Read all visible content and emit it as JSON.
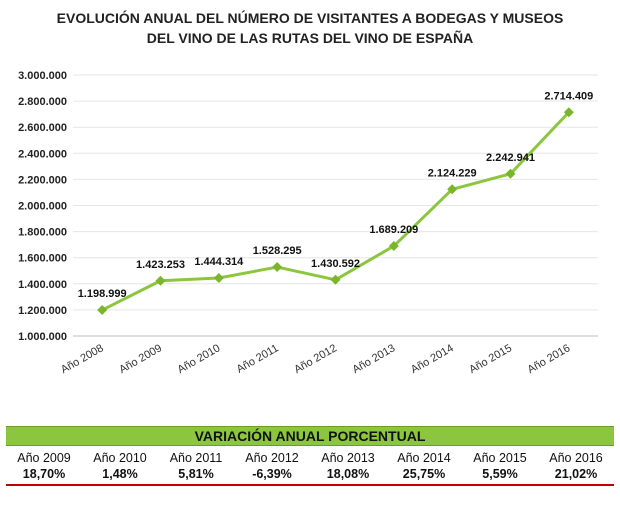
{
  "title_lines": [
    "EVOLUCIÓN ANUAL DEL NÚMERO DE VISITANTES A BODEGAS Y MUSEOS",
    "DEL VINO DE LAS RUTAS DEL VINO DE ESPAÑA"
  ],
  "colors": {
    "line": "#8cc63f",
    "marker": "#7ab62c",
    "grid": "#e6e6e6",
    "table_header": "#8cc63f",
    "table_rule": "#c00000"
  },
  "chart_data": {
    "type": "line",
    "title": "EVOLUCIÓN ANUAL DEL NÚMERO DE VISITANTES A BODEGAS Y MUSEOS DEL VINO DE LAS RUTAS DEL VINO DE ESPAÑA",
    "categories": [
      "Año 2008",
      "Año 2009",
      "Año 2010",
      "Año 2011",
      "Año 2012",
      "Año 2013",
      "Año 2014",
      "Año 2015",
      "Año 2016"
    ],
    "values": [
      1198999,
      1423253,
      1444314,
      1528295,
      1430592,
      1689209,
      2124229,
      2242941,
      2714409
    ],
    "data_labels": [
      "1.198.999",
      "1.423.253",
      "1.444.314",
      "1.528.295",
      "1.430.592",
      "1.689.209",
      "2.124.229",
      "2.242.941",
      "2.714.409"
    ],
    "ylim": [
      1000000,
      3000000
    ],
    "yticks": [
      1000000,
      1200000,
      1400000,
      1600000,
      1800000,
      2000000,
      2200000,
      2400000,
      2600000,
      2800000,
      3000000
    ],
    "ytick_labels": [
      "1.000.000",
      "1.200.000",
      "1.400.000",
      "1.600.000",
      "1.800.000",
      "2.000.000",
      "2.200.000",
      "2.400.000",
      "2.600.000",
      "2.800.000",
      "3.000.000"
    ],
    "grid": true,
    "marker": "diamond"
  },
  "variation_table": {
    "header": "VARIACIÓN ANUAL PORCENTUAL",
    "years": [
      "Año 2009",
      "Año 2010",
      "Año 2011",
      "Año 2012",
      "Año 2013",
      "Año 2014",
      "Año 2015",
      "Año 2016"
    ],
    "values": [
      "18,70%",
      "1,48%",
      "5,81%",
      "-6,39%",
      "18,08%",
      "25,75%",
      "5,59%",
      "21,02%"
    ]
  }
}
